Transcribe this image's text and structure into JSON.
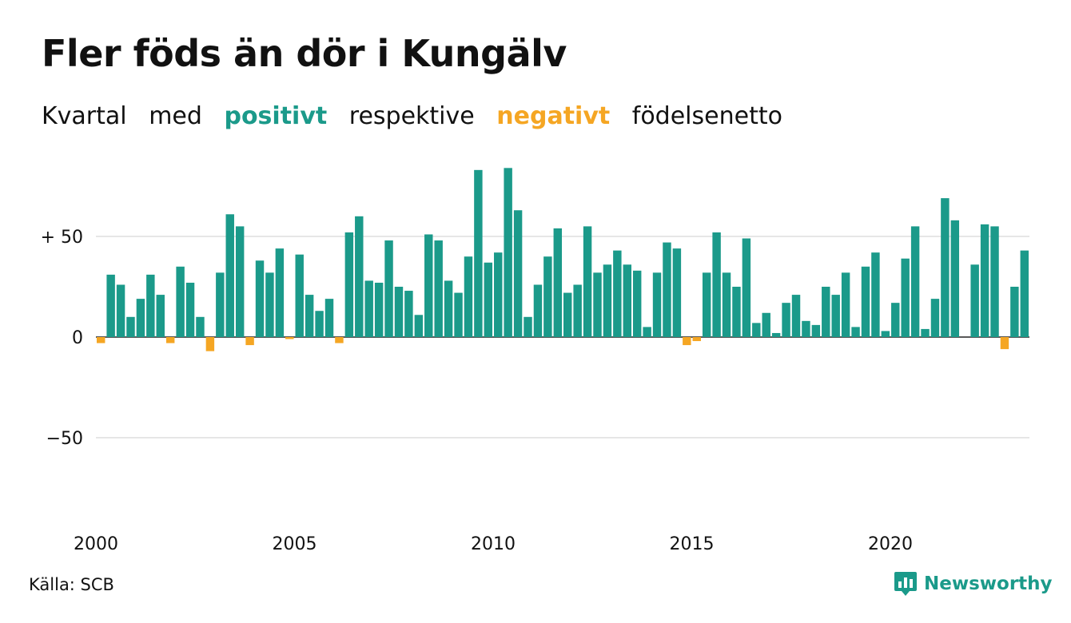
{
  "title": "Fler föds än dör i Kungälv",
  "subtitle": {
    "w1": "Kvartal",
    "w2": "med",
    "w3": "positivt",
    "w4": "respektive",
    "w5": "negativt",
    "w6": "födelsenetto"
  },
  "source": "Källa: SCB",
  "logo": {
    "text": "Newsworthy",
    "icon": "newsworthy-chart-icon"
  },
  "colors": {
    "positive": "#1b9a8a",
    "negative": "#f5a623",
    "grid": "#e6e6e6"
  },
  "chart_data": {
    "type": "bar",
    "xlabel": "",
    "ylabel": "",
    "ylim": [
      -80,
      85
    ],
    "yticks": [
      {
        "value": 50,
        "label": "+ 50"
      },
      {
        "value": 0,
        "label": "0"
      },
      {
        "value": -50,
        "label": "−50"
      }
    ],
    "xticks": [
      "2000",
      "2005",
      "2010",
      "2015",
      "2020"
    ],
    "first_period": "2000 K1",
    "periods_per_year": 4,
    "grid": true,
    "values": [
      -3,
      31,
      26,
      10,
      19,
      31,
      21,
      -3,
      35,
      27,
      10,
      -7,
      32,
      61,
      55,
      -4,
      38,
      32,
      44,
      -1,
      41,
      21,
      13,
      19,
      -3,
      52,
      60,
      28,
      27,
      48,
      25,
      23,
      11,
      51,
      48,
      28,
      22,
      40,
      83,
      37,
      42,
      84,
      63,
      10,
      26,
      40,
      54,
      22,
      26,
      55,
      32,
      36,
      43,
      36,
      33,
      5,
      32,
      47,
      44,
      -4,
      -2,
      32,
      52,
      32,
      25,
      49,
      7,
      12,
      2,
      17,
      21,
      8,
      6,
      25,
      21,
      32,
      5,
      35,
      42,
      3,
      17,
      39,
      55,
      4,
      19,
      69,
      58,
      0,
      36,
      56,
      55,
      -6,
      25,
      43
    ]
  }
}
